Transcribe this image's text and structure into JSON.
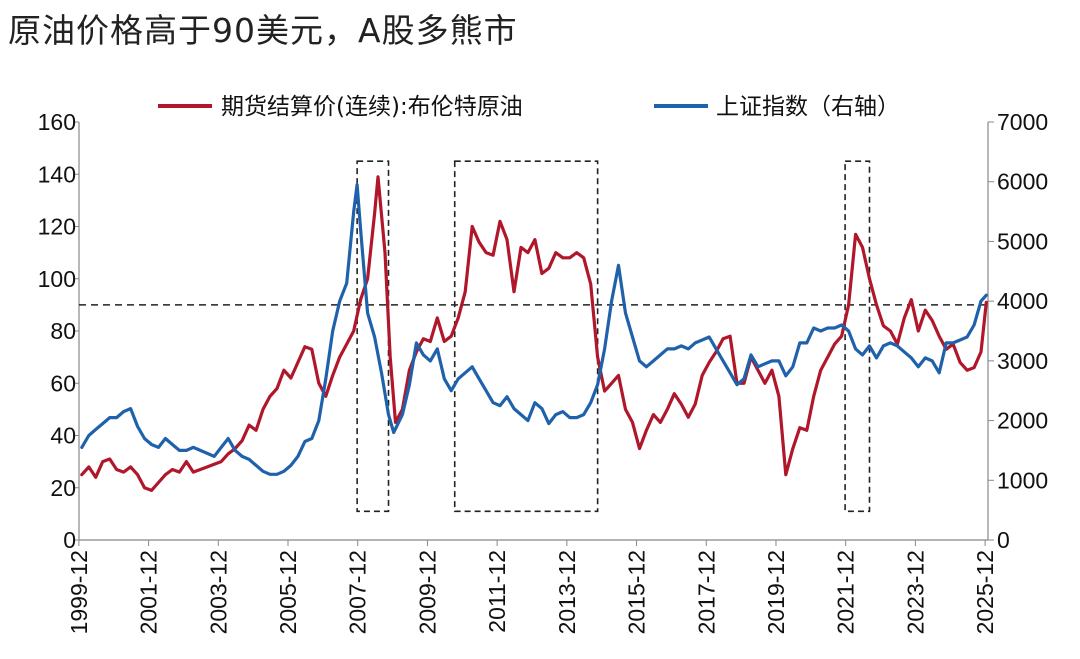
{
  "title": "原油价格高于90美元，A股多熊市",
  "chart_data": {
    "type": "line",
    "left_axis": {
      "min": 0,
      "max": 160,
      "ticks": [
        0,
        20,
        40,
        60,
        80,
        100,
        120,
        140,
        160
      ]
    },
    "right_axis": {
      "min": 0,
      "max": 7000,
      "ticks": [
        0,
        1000,
        2000,
        3000,
        4000,
        5000,
        6000,
        7000
      ]
    },
    "x_range": [
      1999.92,
      2026.0
    ],
    "x_ticks": [
      "1999-12",
      "2001-12",
      "2003-12",
      "2005-12",
      "2007-12",
      "2009-12",
      "2011-12",
      "2013-12",
      "2015-12",
      "2017-12",
      "2019-12",
      "2021-12",
      "2023-12",
      "2025-12"
    ],
    "reference_line": {
      "axis": "left",
      "value": 90,
      "style": "dashed"
    },
    "highlight_boxes": [
      {
        "x0": 2007.9,
        "x1": 2008.8,
        "y_top": 145,
        "y_bottom": 11
      },
      {
        "x0": 2010.7,
        "x1": 2014.8,
        "y_top": 145,
        "y_bottom": 11
      },
      {
        "x0": 2021.9,
        "x1": 2022.6,
        "y_top": 145,
        "y_bottom": 11
      }
    ],
    "series": [
      {
        "name": "期货结算价(连续):布伦特原油",
        "axis": "left",
        "color": "#B0172A",
        "points": [
          [
            2000.0,
            25
          ],
          [
            2000.2,
            28
          ],
          [
            2000.4,
            24
          ],
          [
            2000.6,
            30
          ],
          [
            2000.8,
            31
          ],
          [
            2001.0,
            27
          ],
          [
            2001.2,
            26
          ],
          [
            2001.4,
            28
          ],
          [
            2001.6,
            25
          ],
          [
            2001.8,
            20
          ],
          [
            2002.0,
            19
          ],
          [
            2002.2,
            22
          ],
          [
            2002.4,
            25
          ],
          [
            2002.6,
            27
          ],
          [
            2002.8,
            26
          ],
          [
            2003.0,
            30
          ],
          [
            2003.2,
            26
          ],
          [
            2003.4,
            27
          ],
          [
            2003.6,
            28
          ],
          [
            2003.8,
            29
          ],
          [
            2004.0,
            30
          ],
          [
            2004.2,
            33
          ],
          [
            2004.4,
            35
          ],
          [
            2004.6,
            38
          ],
          [
            2004.8,
            44
          ],
          [
            2005.0,
            42
          ],
          [
            2005.2,
            50
          ],
          [
            2005.4,
            55
          ],
          [
            2005.6,
            58
          ],
          [
            2005.8,
            65
          ],
          [
            2006.0,
            62
          ],
          [
            2006.2,
            68
          ],
          [
            2006.4,
            74
          ],
          [
            2006.6,
            73
          ],
          [
            2006.8,
            60
          ],
          [
            2007.0,
            55
          ],
          [
            2007.2,
            63
          ],
          [
            2007.4,
            70
          ],
          [
            2007.6,
            75
          ],
          [
            2007.8,
            80
          ],
          [
            2008.0,
            92
          ],
          [
            2008.2,
            100
          ],
          [
            2008.4,
            125
          ],
          [
            2008.5,
            139
          ],
          [
            2008.7,
            110
          ],
          [
            2008.85,
            70
          ],
          [
            2009.0,
            45
          ],
          [
            2009.2,
            50
          ],
          [
            2009.4,
            65
          ],
          [
            2009.6,
            72
          ],
          [
            2009.8,
            77
          ],
          [
            2010.0,
            76
          ],
          [
            2010.2,
            85
          ],
          [
            2010.4,
            76
          ],
          [
            2010.6,
            78
          ],
          [
            2010.8,
            85
          ],
          [
            2011.0,
            95
          ],
          [
            2011.2,
            120
          ],
          [
            2011.4,
            114
          ],
          [
            2011.6,
            110
          ],
          [
            2011.8,
            109
          ],
          [
            2012.0,
            122
          ],
          [
            2012.2,
            115
          ],
          [
            2012.4,
            95
          ],
          [
            2012.6,
            112
          ],
          [
            2012.8,
            110
          ],
          [
            2013.0,
            115
          ],
          [
            2013.2,
            102
          ],
          [
            2013.4,
            104
          ],
          [
            2013.6,
            110
          ],
          [
            2013.8,
            108
          ],
          [
            2014.0,
            108
          ],
          [
            2014.2,
            110
          ],
          [
            2014.4,
            108
          ],
          [
            2014.6,
            98
          ],
          [
            2014.8,
            70
          ],
          [
            2015.0,
            57
          ],
          [
            2015.2,
            60
          ],
          [
            2015.4,
            63
          ],
          [
            2015.6,
            50
          ],
          [
            2015.8,
            45
          ],
          [
            2016.0,
            35
          ],
          [
            2016.2,
            42
          ],
          [
            2016.4,
            48
          ],
          [
            2016.6,
            45
          ],
          [
            2016.8,
            50
          ],
          [
            2017.0,
            56
          ],
          [
            2017.2,
            52
          ],
          [
            2017.4,
            47
          ],
          [
            2017.6,
            52
          ],
          [
            2017.8,
            63
          ],
          [
            2018.0,
            68
          ],
          [
            2018.2,
            72
          ],
          [
            2018.4,
            77
          ],
          [
            2018.6,
            78
          ],
          [
            2018.8,
            60
          ],
          [
            2019.0,
            60
          ],
          [
            2019.2,
            70
          ],
          [
            2019.4,
            65
          ],
          [
            2019.6,
            60
          ],
          [
            2019.8,
            65
          ],
          [
            2020.0,
            55
          ],
          [
            2020.2,
            25
          ],
          [
            2020.4,
            35
          ],
          [
            2020.6,
            43
          ],
          [
            2020.8,
            42
          ],
          [
            2021.0,
            55
          ],
          [
            2021.2,
            65
          ],
          [
            2021.4,
            70
          ],
          [
            2021.6,
            75
          ],
          [
            2021.8,
            78
          ],
          [
            2022.0,
            90
          ],
          [
            2022.2,
            117
          ],
          [
            2022.4,
            112
          ],
          [
            2022.6,
            100
          ],
          [
            2022.8,
            90
          ],
          [
            2023.0,
            82
          ],
          [
            2023.2,
            80
          ],
          [
            2023.4,
            75
          ],
          [
            2023.6,
            85
          ],
          [
            2023.8,
            92
          ],
          [
            2024.0,
            80
          ],
          [
            2024.2,
            88
          ],
          [
            2024.4,
            84
          ],
          [
            2024.6,
            78
          ],
          [
            2024.8,
            73
          ],
          [
            2025.0,
            75
          ],
          [
            2025.2,
            68
          ],
          [
            2025.4,
            65
          ],
          [
            2025.6,
            66
          ],
          [
            2025.8,
            72
          ],
          [
            2025.95,
            91
          ]
        ]
      },
      {
        "name": "上证指数（右轴）",
        "axis": "right",
        "color": "#1F62AB",
        "points": [
          [
            2000.0,
            1550
          ],
          [
            2000.2,
            1750
          ],
          [
            2000.4,
            1850
          ],
          [
            2000.6,
            1950
          ],
          [
            2000.8,
            2050
          ],
          [
            2001.0,
            2050
          ],
          [
            2001.2,
            2150
          ],
          [
            2001.4,
            2200
          ],
          [
            2001.6,
            1900
          ],
          [
            2001.8,
            1700
          ],
          [
            2002.0,
            1600
          ],
          [
            2002.2,
            1550
          ],
          [
            2002.4,
            1700
          ],
          [
            2002.6,
            1600
          ],
          [
            2002.8,
            1500
          ],
          [
            2003.0,
            1500
          ],
          [
            2003.2,
            1550
          ],
          [
            2003.4,
            1500
          ],
          [
            2003.6,
            1450
          ],
          [
            2003.8,
            1400
          ],
          [
            2004.0,
            1550
          ],
          [
            2004.2,
            1700
          ],
          [
            2004.4,
            1500
          ],
          [
            2004.6,
            1400
          ],
          [
            2004.8,
            1350
          ],
          [
            2005.0,
            1250
          ],
          [
            2005.2,
            1150
          ],
          [
            2005.4,
            1100
          ],
          [
            2005.6,
            1100
          ],
          [
            2005.8,
            1150
          ],
          [
            2006.0,
            1250
          ],
          [
            2006.2,
            1400
          ],
          [
            2006.4,
            1650
          ],
          [
            2006.6,
            1700
          ],
          [
            2006.8,
            2000
          ],
          [
            2007.0,
            2700
          ],
          [
            2007.2,
            3500
          ],
          [
            2007.4,
            4000
          ],
          [
            2007.6,
            4300
          ],
          [
            2007.8,
            5500
          ],
          [
            2007.9,
            5950
          ],
          [
            2008.0,
            5200
          ],
          [
            2008.2,
            3800
          ],
          [
            2008.4,
            3400
          ],
          [
            2008.6,
            2800
          ],
          [
            2008.8,
            2100
          ],
          [
            2008.95,
            1800
          ],
          [
            2009.2,
            2100
          ],
          [
            2009.4,
            2600
          ],
          [
            2009.6,
            3300
          ],
          [
            2009.8,
            3100
          ],
          [
            2010.0,
            3000
          ],
          [
            2010.2,
            3200
          ],
          [
            2010.4,
            2700
          ],
          [
            2010.6,
            2500
          ],
          [
            2010.8,
            2700
          ],
          [
            2011.0,
            2800
          ],
          [
            2011.2,
            2900
          ],
          [
            2011.4,
            2700
          ],
          [
            2011.6,
            2500
          ],
          [
            2011.8,
            2300
          ],
          [
            2012.0,
            2250
          ],
          [
            2012.2,
            2400
          ],
          [
            2012.4,
            2200
          ],
          [
            2012.6,
            2100
          ],
          [
            2012.8,
            2000
          ],
          [
            2013.0,
            2300
          ],
          [
            2013.2,
            2200
          ],
          [
            2013.4,
            1950
          ],
          [
            2013.6,
            2100
          ],
          [
            2013.8,
            2150
          ],
          [
            2014.0,
            2050
          ],
          [
            2014.2,
            2050
          ],
          [
            2014.4,
            2100
          ],
          [
            2014.6,
            2300
          ],
          [
            2014.8,
            2600
          ],
          [
            2015.0,
            3200
          ],
          [
            2015.2,
            4000
          ],
          [
            2015.4,
            4600
          ],
          [
            2015.6,
            3800
          ],
          [
            2015.8,
            3400
          ],
          [
            2016.0,
            3000
          ],
          [
            2016.2,
            2900
          ],
          [
            2016.4,
            3000
          ],
          [
            2016.6,
            3100
          ],
          [
            2016.8,
            3200
          ],
          [
            2017.0,
            3200
          ],
          [
            2017.2,
            3250
          ],
          [
            2017.4,
            3200
          ],
          [
            2017.6,
            3300
          ],
          [
            2017.8,
            3350
          ],
          [
            2018.0,
            3400
          ],
          [
            2018.2,
            3200
          ],
          [
            2018.4,
            3000
          ],
          [
            2018.6,
            2800
          ],
          [
            2018.8,
            2600
          ],
          [
            2019.0,
            2700
          ],
          [
            2019.2,
            3100
          ],
          [
            2019.4,
            2900
          ],
          [
            2019.6,
            2950
          ],
          [
            2019.8,
            3000
          ],
          [
            2020.0,
            3000
          ],
          [
            2020.2,
            2750
          ],
          [
            2020.4,
            2900
          ],
          [
            2020.6,
            3300
          ],
          [
            2020.8,
            3300
          ],
          [
            2021.0,
            3550
          ],
          [
            2021.2,
            3500
          ],
          [
            2021.4,
            3550
          ],
          [
            2021.6,
            3550
          ],
          [
            2021.8,
            3600
          ],
          [
            2022.0,
            3500
          ],
          [
            2022.2,
            3200
          ],
          [
            2022.4,
            3100
          ],
          [
            2022.6,
            3250
          ],
          [
            2022.8,
            3050
          ],
          [
            2023.0,
            3250
          ],
          [
            2023.2,
            3300
          ],
          [
            2023.4,
            3250
          ],
          [
            2023.6,
            3150
          ],
          [
            2023.8,
            3050
          ],
          [
            2024.0,
            2900
          ],
          [
            2024.2,
            3050
          ],
          [
            2024.4,
            3000
          ],
          [
            2024.6,
            2800
          ],
          [
            2024.8,
            3300
          ],
          [
            2025.0,
            3300
          ],
          [
            2025.2,
            3350
          ],
          [
            2025.4,
            3400
          ],
          [
            2025.6,
            3600
          ],
          [
            2025.8,
            4000
          ],
          [
            2025.95,
            4100
          ]
        ]
      }
    ]
  },
  "legend": [
    {
      "label": "期货结算价(连续):布伦特原油",
      "color": "#B0172A"
    },
    {
      "label": "上证指数（右轴）",
      "color": "#1F62AB"
    }
  ]
}
